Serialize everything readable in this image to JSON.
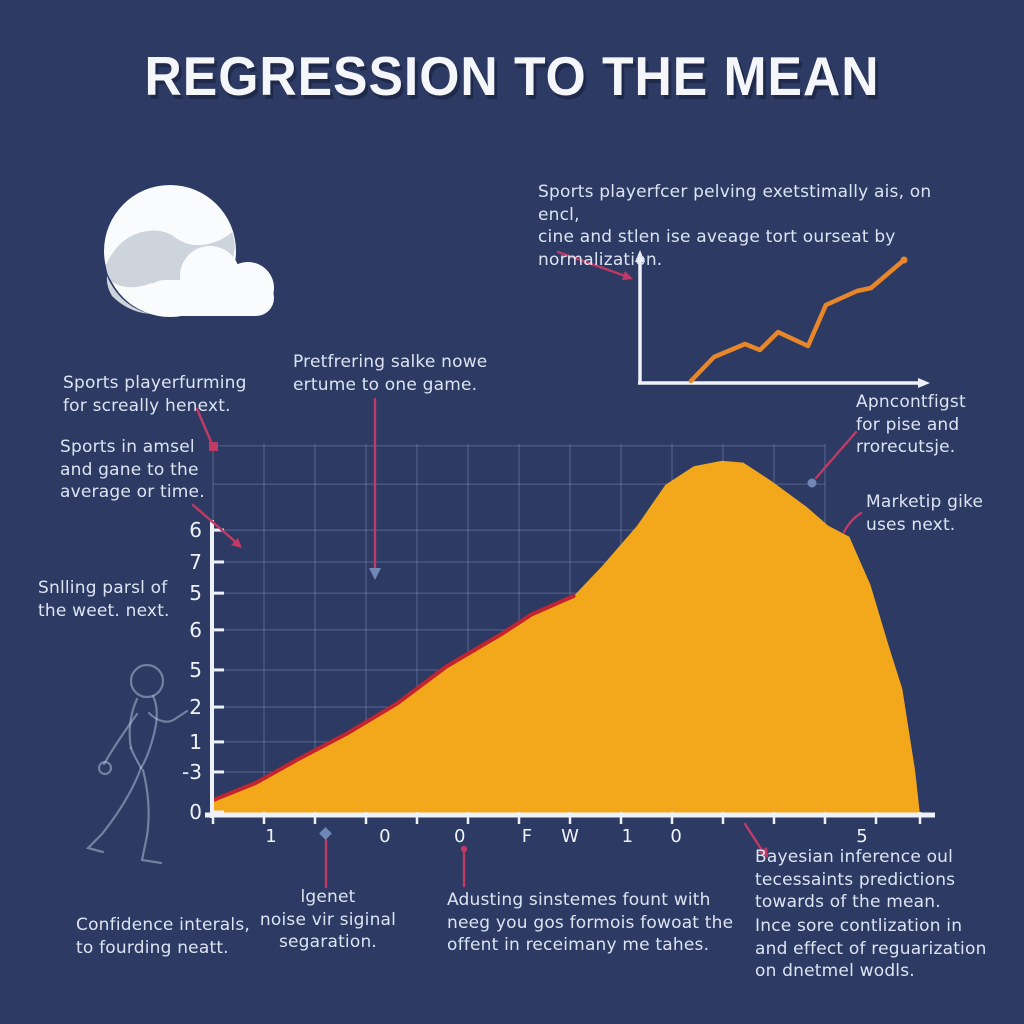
{
  "title": "REGRESSION TO THE MEAN",
  "colors": {
    "background": "#2d3a63",
    "accent_yellow": "#f3a81c",
    "curve_red": "#c2252e",
    "arrow_pink": "#bf3a64",
    "marker_blue": "#7187b8",
    "axis_white": "#eef2f8",
    "grid_blue": "#8fa3cf",
    "mini_line_orange": "#e8872a",
    "text_light": "#dce4f2",
    "cloud_white": "#fafbfd",
    "cloud_gray": "#cdd4db"
  },
  "annotations": {
    "top_right_paragraph": "Sports playerfcer pelving exetstimally ais, on encl,\ncine and stlen ise aveage tort ourseat by\nnormalization.",
    "left_top": "Sports playerfurming\nfor screally henext.",
    "left_mid": "Sports in amsel\nand gane to the\naverage or time.",
    "left_lower": "Snlling parsl of\nthe weet. next.",
    "mid_top": "Pretfrering salke nowe\nertume to one game.",
    "right_top": "Apncontfigst\nfor pise and\nrrorecutsje.",
    "right_mid": "Marketip gike\nuses next.",
    "bottom_confidence": "Confidence interals,\nto fourding neatt.",
    "bottom_noise": "lgenet\nnoise vir siginal\nsegaration.",
    "bottom_adjusting": "Adusting sinstemes fount with\nneeg you gos formois fowoat the\noffent in receimany me tahes.",
    "bottom_bayesian": "Bayesian inference oul\ntecessaints predictions\ntowards of the mean.",
    "bottom_regularization": "Ince sore contlization in\nand effect of reguarization\non dnetmel wodls."
  },
  "chart_data": [
    {
      "type": "area",
      "title": "",
      "xlabel": "",
      "ylabel": "",
      "grid": true,
      "fill_color": "#f3a81c",
      "edge_color": "#c2252e",
      "x_tick_labels": [
        "1",
        "0",
        "0",
        "F",
        "W",
        "1",
        "0",
        "5"
      ],
      "x_tick_pos_pct": [
        8.2,
        24.3,
        34.9,
        44.4,
        50.5,
        58.6,
        65.5,
        91.8
      ],
      "y_tick_labels": [
        "6",
        "7",
        "5",
        "6",
        "5",
        "2",
        "1",
        "-3",
        "0"
      ],
      "y_tick_pos_pct": [
        23.2,
        31.8,
        40.2,
        50.1,
        60.9,
        70.9,
        80.3,
        88.4,
        99.2
      ],
      "h_gridlines_pct": [
        0.5,
        10.8,
        23.2,
        31.8,
        40.2,
        50.1,
        60.9,
        70.9,
        80.3,
        88.4,
        99.2
      ],
      "area_points_pct": [
        [
          0,
          4
        ],
        [
          6,
          8.6
        ],
        [
          12,
          15
        ],
        [
          19,
          22
        ],
        [
          26,
          30
        ],
        [
          33,
          40
        ],
        [
          41,
          49
        ],
        [
          45,
          54
        ],
        [
          51,
          59
        ],
        [
          55,
          67
        ],
        [
          60,
          78
        ],
        [
          64,
          89
        ],
        [
          68,
          94
        ],
        [
          72,
          95.5
        ],
        [
          75,
          95
        ],
        [
          79,
          90
        ],
        [
          84,
          83
        ],
        [
          87,
          78
        ],
        [
          90,
          75
        ],
        [
          93,
          62
        ],
        [
          95.5,
          46
        ],
        [
          97.5,
          34
        ],
        [
          99.3,
          12
        ],
        [
          100,
          0
        ]
      ],
      "red_edge_point_count": 9
    },
    {
      "type": "line",
      "title": "",
      "grid": false,
      "line_color": "#e8872a",
      "axis_color": "#eef2f8",
      "points_pct": [
        [
          18.5,
          1.6
        ],
        [
          26.9,
          20.3
        ],
        [
          38.2,
          30.5
        ],
        [
          43.6,
          25.8
        ],
        [
          50.2,
          39.8
        ],
        [
          61.1,
          28.9
        ],
        [
          67.6,
          60.9
        ],
        [
          78.9,
          71.9
        ],
        [
          84,
          74.2
        ],
        [
          96,
          96.1
        ]
      ]
    }
  ]
}
